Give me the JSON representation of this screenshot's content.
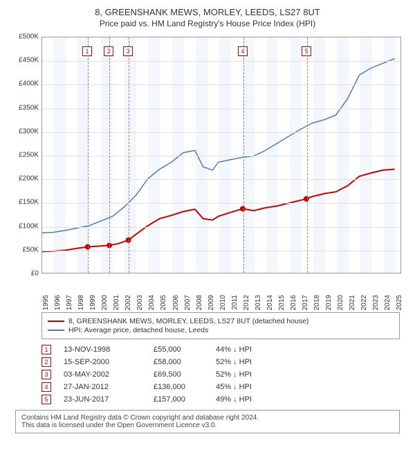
{
  "title_line1": "8, GREENSHANK MEWS, MORLEY, LEEDS, LS27 8UT",
  "title_line2": "Price paid vs. HM Land Registry's House Price Index (HPI)",
  "chart": {
    "type": "line",
    "background_color": "#ffffff",
    "grid_color": "#e0e0e0",
    "axis_color": "#999999",
    "x_years": [
      1995,
      1996,
      1997,
      1998,
      1999,
      2000,
      2001,
      2002,
      2003,
      2004,
      2005,
      2006,
      2007,
      2008,
      2009,
      2010,
      2011,
      2012,
      2013,
      2014,
      2015,
      2016,
      2017,
      2018,
      2019,
      2020,
      2021,
      2022,
      2023,
      2024,
      2025
    ],
    "xlim": [
      1995,
      2025.5
    ],
    "ylim": [
      0,
      500000
    ],
    "ytick_step": 50000,
    "yticks": [
      "£0",
      "£50K",
      "£100K",
      "£150K",
      "£200K",
      "£250K",
      "£300K",
      "£350K",
      "£400K",
      "£450K",
      "£500K"
    ],
    "series": [
      {
        "name": "property",
        "color": "#d00000",
        "width": 2,
        "points": [
          [
            1995,
            45000
          ],
          [
            1996,
            46000
          ],
          [
            1997,
            48000
          ],
          [
            1998,
            52000
          ],
          [
            1998.87,
            55000
          ],
          [
            1999.5,
            56000
          ],
          [
            2000.7,
            58000
          ],
          [
            2001.5,
            62000
          ],
          [
            2002.34,
            69500
          ],
          [
            2003,
            82000
          ],
          [
            2004,
            100000
          ],
          [
            2005,
            115000
          ],
          [
            2006,
            122000
          ],
          [
            2007,
            130000
          ],
          [
            2008,
            135000
          ],
          [
            2008.7,
            115000
          ],
          [
            2009.5,
            112000
          ],
          [
            2010,
            120000
          ],
          [
            2011,
            128000
          ],
          [
            2012.07,
            136000
          ],
          [
            2013,
            132000
          ],
          [
            2014,
            138000
          ],
          [
            2015,
            142000
          ],
          [
            2016,
            148000
          ],
          [
            2017.48,
            157000
          ],
          [
            2018,
            162000
          ],
          [
            2019,
            168000
          ],
          [
            2020,
            172000
          ],
          [
            2021,
            185000
          ],
          [
            2022,
            205000
          ],
          [
            2023,
            212000
          ],
          [
            2024,
            218000
          ],
          [
            2025,
            220000
          ]
        ]
      },
      {
        "name": "hpi",
        "color": "#4a7ebb",
        "width": 1.5,
        "points": [
          [
            1995,
            85000
          ],
          [
            1996,
            86000
          ],
          [
            1997,
            90000
          ],
          [
            1998,
            95000
          ],
          [
            1999,
            100000
          ],
          [
            2000,
            110000
          ],
          [
            2001,
            120000
          ],
          [
            2002,
            140000
          ],
          [
            2003,
            165000
          ],
          [
            2004,
            200000
          ],
          [
            2005,
            220000
          ],
          [
            2006,
            235000
          ],
          [
            2007,
            255000
          ],
          [
            2008,
            260000
          ],
          [
            2008.7,
            225000
          ],
          [
            2009.5,
            218000
          ],
          [
            2010,
            235000
          ],
          [
            2011,
            240000
          ],
          [
            2012,
            245000
          ],
          [
            2013,
            248000
          ],
          [
            2014,
            260000
          ],
          [
            2015,
            275000
          ],
          [
            2016,
            290000
          ],
          [
            2017,
            305000
          ],
          [
            2018,
            318000
          ],
          [
            2019,
            325000
          ],
          [
            2020,
            335000
          ],
          [
            2021,
            370000
          ],
          [
            2022,
            420000
          ],
          [
            2023,
            435000
          ],
          [
            2024,
            445000
          ],
          [
            2025,
            455000
          ]
        ]
      }
    ],
    "sale_markers": [
      {
        "n": "1",
        "year": 1998.87,
        "color": "#d00000"
      },
      {
        "n": "2",
        "year": 2000.71,
        "color": "#d00000"
      },
      {
        "n": "3",
        "year": 2002.34,
        "color": "#d00000"
      },
      {
        "n": "4",
        "year": 2012.07,
        "color": "#d00000"
      },
      {
        "n": "5",
        "year": 2017.48,
        "color": "#d00000"
      }
    ],
    "sale_points": [
      {
        "year": 1998.87,
        "price": 55000
      },
      {
        "year": 2000.71,
        "price": 58000
      },
      {
        "year": 2002.34,
        "price": 69500
      },
      {
        "year": 2012.07,
        "price": 136000
      },
      {
        "year": 2017.48,
        "price": 157000
      }
    ],
    "vband_color": "#e8eef7",
    "vband_opacity": 0.5,
    "vline_color": "#888888",
    "marker_top_y": 14
  },
  "legend": {
    "items": [
      {
        "color": "#d00000",
        "label": "8, GREENSHANK MEWS, MORLEY, LEEDS, LS27 8UT (detached house)"
      },
      {
        "color": "#4a7ebb",
        "label": "HPI: Average price, detached house, Leeds"
      }
    ]
  },
  "sales_table": {
    "rows": [
      {
        "n": "1",
        "date": "13-NOV-1998",
        "price": "£55,000",
        "diff": "44% ↓ HPI",
        "color": "#d00000"
      },
      {
        "n": "2",
        "date": "15-SEP-2000",
        "price": "£58,000",
        "diff": "52% ↓ HPI",
        "color": "#d00000"
      },
      {
        "n": "3",
        "date": "03-MAY-2002",
        "price": "£69,500",
        "diff": "52% ↓ HPI",
        "color": "#d00000"
      },
      {
        "n": "4",
        "date": "27-JAN-2012",
        "price": "£136,000",
        "diff": "45% ↓ HPI",
        "color": "#d00000"
      },
      {
        "n": "5",
        "date": "23-JUN-2017",
        "price": "£157,000",
        "diff": "49% ↓ HPI",
        "color": "#d00000"
      }
    ]
  },
  "footer": {
    "line1": "Contains HM Land Registry data © Crown copyright and database right 2024.",
    "line2": "This data is licensed under the Open Government Licence v3.0."
  }
}
